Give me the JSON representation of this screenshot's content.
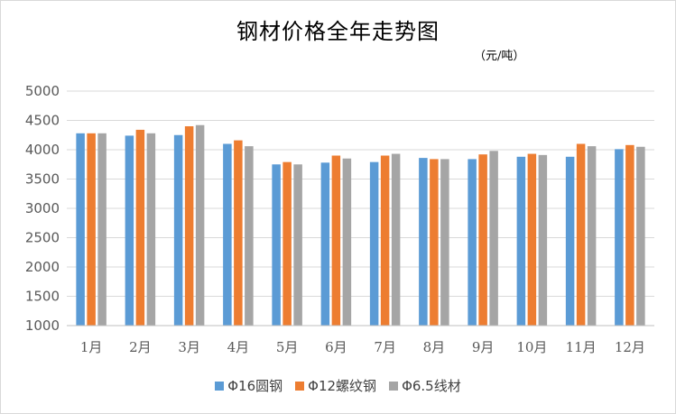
{
  "chart_data": {
    "type": "bar",
    "title": "钢材价格全年走势图",
    "subtitle": "（元/吨）",
    "categories": [
      "1月",
      "2月",
      "3月",
      "4月",
      "5月",
      "6月",
      "7月",
      "8月",
      "9月",
      "10月",
      "11月",
      "12月"
    ],
    "series": [
      {
        "name": "Φ16圆钢",
        "color": "#5b9bd5",
        "values": [
          4280,
          4240,
          4250,
          4100,
          3750,
          3780,
          3790,
          3860,
          3840,
          3880,
          3880,
          4010
        ]
      },
      {
        "name": "Φ12螺纹钢",
        "color": "#ed7d31",
        "values": [
          4280,
          4340,
          4400,
          4160,
          3790,
          3900,
          3900,
          3840,
          3920,
          3930,
          4100,
          4080
        ]
      },
      {
        "name": "Φ6.5线材",
        "color": "#a5a5a5",
        "values": [
          4280,
          4280,
          4420,
          4060,
          3750,
          3850,
          3930,
          3840,
          3980,
          3910,
          4060,
          4050
        ]
      }
    ],
    "ylim": [
      1000,
      5000
    ],
    "yticks": [
      1000,
      1500,
      2000,
      2500,
      3000,
      3500,
      4000,
      4500,
      5000
    ],
    "grid": true,
    "legend_position": "bottom"
  }
}
